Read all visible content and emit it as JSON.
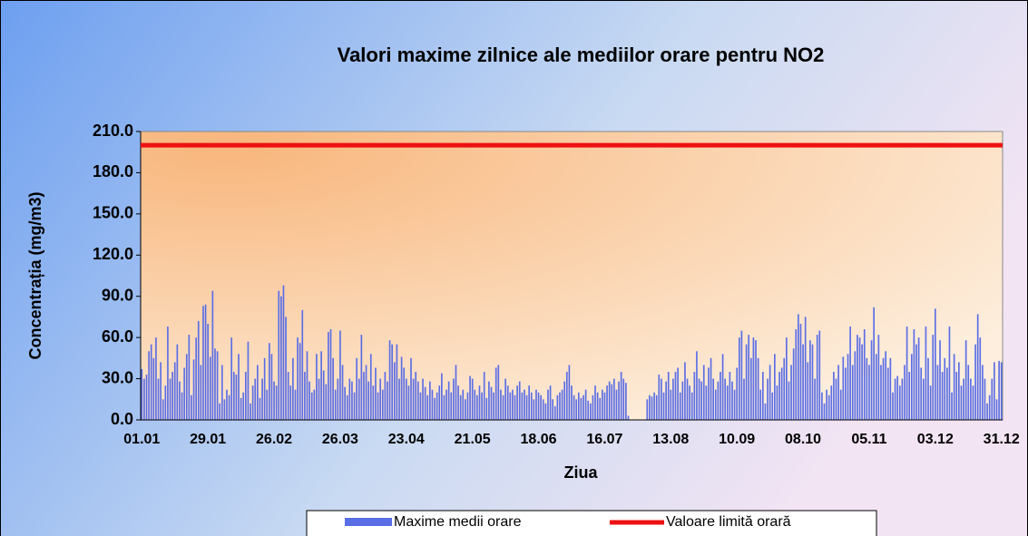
{
  "chart_data": {
    "type": "bar",
    "title": "Valori maxime zilnice ale mediilor orare pentru NO2",
    "xlabel": "Ziua",
    "ylabel": "Concentrația (mg/m3)",
    "categories": [
      "01.01",
      null,
      null,
      null,
      null,
      null,
      null,
      null,
      null,
      null,
      null,
      null,
      null,
      null,
      null,
      null,
      null,
      null,
      null,
      null,
      null,
      null,
      null,
      null,
      null,
      null,
      null,
      null,
      "29.01",
      null,
      null,
      null,
      null,
      null,
      null,
      null,
      null,
      null,
      null,
      null,
      null,
      null,
      null,
      null,
      null,
      null,
      null,
      null,
      null,
      null,
      null,
      null,
      null,
      null,
      null,
      null,
      "26.02",
      null,
      null,
      null,
      null,
      null,
      null,
      null,
      null,
      null,
      null,
      null,
      null,
      null,
      null,
      null,
      null,
      null,
      null,
      null,
      null,
      null,
      null,
      null,
      null,
      null,
      null,
      null,
      "26.03",
      null,
      null,
      null,
      null,
      null,
      null,
      null,
      null,
      null,
      null,
      null,
      null,
      null,
      null,
      null,
      null,
      null,
      null,
      null,
      null,
      null,
      null,
      null,
      null,
      null,
      null,
      null,
      "23.04",
      null,
      null,
      null,
      null,
      null,
      null,
      null,
      null,
      null,
      null,
      null,
      null,
      null,
      null,
      null,
      null,
      null,
      null,
      null,
      null,
      null,
      null,
      null,
      null,
      null,
      null,
      null,
      "21.05",
      null,
      null,
      null,
      null,
      null,
      null,
      null,
      null,
      null,
      null,
      null,
      null,
      null,
      null,
      null,
      null,
      null,
      null,
      null,
      null,
      null,
      null,
      null,
      null,
      null,
      null,
      null,
      "18.06",
      null,
      null,
      null,
      null,
      null,
      null,
      null,
      null,
      null,
      null,
      null,
      null,
      null,
      null,
      null,
      null,
      null,
      null,
      null,
      null,
      null,
      null,
      null,
      null,
      null,
      null,
      null,
      "16.07",
      null,
      null,
      null,
      null,
      null,
      null,
      null,
      null,
      null,
      null,
      null,
      null,
      null,
      null,
      null,
      null,
      null,
      null,
      null,
      null,
      null,
      null,
      null,
      null,
      null,
      null,
      null,
      "13.08",
      null,
      null,
      null,
      null,
      null,
      null,
      null,
      null,
      null,
      null,
      null,
      null,
      null,
      null,
      null,
      null,
      null,
      null,
      null,
      null,
      null,
      null,
      null,
      null,
      null,
      null,
      null,
      "10.09",
      null,
      null,
      null,
      null,
      null,
      null,
      null,
      null,
      null,
      null,
      null,
      null,
      null,
      null,
      null,
      null,
      null,
      null,
      null,
      null,
      null,
      null,
      null,
      null,
      null,
      null,
      null,
      "08.10",
      null,
      null,
      null,
      null,
      null,
      null,
      null,
      null,
      null,
      null,
      null,
      null,
      null,
      null,
      null,
      null,
      null,
      null,
      null,
      null,
      null,
      null,
      null,
      null,
      null,
      null,
      null,
      "05.11",
      null,
      null,
      null,
      null,
      null,
      null,
      null,
      null,
      null,
      null,
      null,
      null,
      null,
      null,
      null,
      null,
      null,
      null,
      null,
      null,
      null,
      null,
      null,
      null,
      null,
      null,
      null,
      "03.12",
      null,
      null,
      null,
      null,
      null,
      null,
      null,
      null,
      null,
      null,
      null,
      null,
      null,
      null,
      null,
      null,
      null,
      null,
      null,
      null,
      null,
      null,
      null,
      null,
      null,
      null,
      null,
      "31.12"
    ],
    "series": [
      {
        "name": "Maxime medii orare",
        "color": "#5a6ee6",
        "values": [
          37,
          30,
          33,
          50,
          55,
          45,
          60,
          30,
          42,
          15,
          25,
          68,
          30,
          35,
          42,
          55,
          28,
          20,
          38,
          48,
          62,
          18,
          44,
          60,
          72,
          40,
          83,
          84,
          70,
          46,
          94,
          52,
          50,
          12,
          40,
          15,
          22,
          18,
          60,
          35,
          33,
          48,
          16,
          20,
          35,
          57,
          12,
          25,
          30,
          40,
          16,
          30,
          45,
          22,
          56,
          48,
          28,
          25,
          94,
          90,
          98,
          75,
          35,
          25,
          45,
          22,
          60,
          56,
          80,
          35,
          50,
          28,
          20,
          22,
          48,
          30,
          50,
          36,
          26,
          64,
          66,
          45,
          22,
          30,
          65,
          40,
          24,
          18,
          30,
          28,
          20,
          45,
          30,
          62,
          35,
          40,
          28,
          48,
          25,
          38,
          20,
          30,
          22,
          35,
          28,
          58,
          55,
          42,
          55,
          30,
          46,
          38,
          30,
          25,
          45,
          30,
          35,
          28,
          20,
          30,
          24,
          18,
          28,
          22,
          16,
          20,
          25,
          34,
          18,
          22,
          28,
          20,
          30,
          40,
          25,
          18,
          22,
          15,
          20,
          32,
          30,
          22,
          18,
          25,
          20,
          35,
          16,
          28,
          24,
          20,
          38,
          40,
          22,
          18,
          30,
          25,
          20,
          22,
          18,
          25,
          28,
          20,
          22,
          18,
          25,
          20,
          15,
          22,
          20,
          18,
          15,
          12,
          22,
          25,
          15,
          10,
          18,
          20,
          22,
          28,
          35,
          40,
          25,
          18,
          15,
          20,
          16,
          18,
          22,
          14,
          12,
          18,
          25,
          20,
          16,
          22,
          20,
          25,
          28,
          26,
          30,
          22,
          28,
          35,
          30,
          27,
          3,
          null,
          null,
          null,
          null,
          null,
          null,
          null,
          15,
          18,
          17,
          20,
          18,
          33,
          30,
          20,
          28,
          35,
          22,
          30,
          35,
          38,
          20,
          28,
          42,
          30,
          25,
          20,
          35,
          50,
          30,
          28,
          40,
          25,
          38,
          45,
          30,
          22,
          28,
          35,
          48,
          30,
          25,
          35,
          28,
          22,
          38,
          60,
          65,
          30,
          55,
          62,
          45,
          60,
          58,
          45,
          22,
          35,
          12,
          30,
          40,
          20,
          48,
          25,
          35,
          38,
          45,
          60,
          28,
          40,
          52,
          66,
          77,
          70,
          55,
          75,
          42,
          58,
          55,
          30,
          62,
          65,
          20,
          12,
          22,
          18,
          25,
          35,
          30,
          40,
          22,
          46,
          38,
          48,
          68,
          40,
          50,
          62,
          60,
          55,
          66,
          45,
          40,
          58,
          82,
          48,
          62,
          40,
          45,
          50,
          38,
          45,
          20,
          30,
          32,
          25,
          30,
          40,
          68,
          35,
          48,
          66,
          55,
          60,
          38,
          30,
          68,
          45,
          25,
          62,
          81,
          40,
          58,
          35,
          45,
          38,
          68,
          20,
          48,
          35,
          42,
          25,
          30,
          58,
          40,
          30,
          25,
          55,
          77,
          60,
          40,
          30,
          12,
          18,
          30,
          42,
          15,
          43,
          42
        ]
      }
    ],
    "reference_line": {
      "name": "Valoare limită orară",
      "value": 200,
      "color": "#ee1111"
    },
    "ylim": [
      0,
      210
    ],
    "yticks": [
      {
        "value": 0,
        "label": "0.0"
      },
      {
        "value": 30,
        "label": "30.0"
      },
      {
        "value": 60,
        "label": "60.0"
      },
      {
        "value": 90,
        "label": "90.0"
      },
      {
        "value": 120,
        "label": "120.0"
      },
      {
        "value": 150,
        "label": "150.0"
      },
      {
        "value": 180,
        "label": "180.0"
      },
      {
        "value": 210,
        "label": "210.0"
      }
    ],
    "legend": "bottom"
  }
}
